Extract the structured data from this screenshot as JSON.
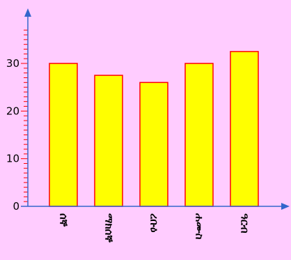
{
  "chart_data": {
    "type": "bar",
    "title": "",
    "xlabel": "",
    "ylabel": "",
    "categories": [
      "ሰኞ",
      "ማክሰኞ",
      "ረቡዕ",
      "ሐሙስ",
      "ዓርብ"
    ],
    "values": [
      30,
      27.5,
      26,
      30,
      32.5
    ],
    "ylim": [
      0,
      37
    ],
    "y_ticks": [
      "0",
      "10",
      "20",
      "30"
    ],
    "y_tick_values": [
      0,
      10,
      20,
      30
    ],
    "y_minor_step": 1,
    "grid": false,
    "legend": "none"
  },
  "colors": {
    "background": "#ffccff",
    "bar_fill": "#ffff00",
    "bar_stroke": "#ff0000",
    "axis": "#3366cc",
    "tick": "#ff0000"
  }
}
